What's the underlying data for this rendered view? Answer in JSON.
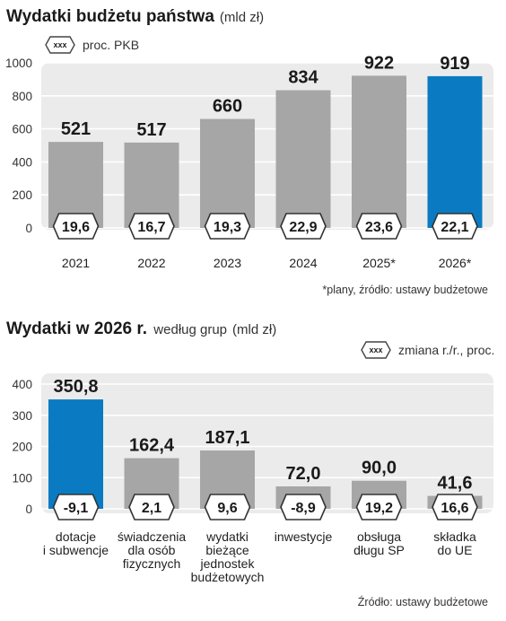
{
  "chart1": {
    "title": "Wydatki budżetu państwa",
    "unit": "(mld zł)",
    "legend_badge": "xxx",
    "legend_label": "proc. PKB",
    "source": "*plany, źródło: ustawy budżetowe"
  },
  "chart2": {
    "title": "Wydatki w 2026 r.",
    "title_suffix": "według grup",
    "unit": "(mld zł)",
    "legend_badge": "xxx",
    "legend_label": "zmiana r./r., proc.",
    "source": "Źródło: ustawy budżetowe"
  },
  "colors": {
    "gray_bar": "#a6a6a6",
    "highlight_bar": "#0a7bc2",
    "panel_bg": "#ebebeb"
  },
  "chart_data": [
    {
      "type": "bar",
      "title": "Wydatki budżetu państwa",
      "ylabel": "",
      "xlabel": "",
      "ylim": [
        0,
        1000
      ],
      "yticks": [
        0,
        200,
        400,
        600,
        800,
        1000
      ],
      "categories": [
        "2021",
        "2022",
        "2023",
        "2024",
        "2025*",
        "2026*"
      ],
      "values": [
        521,
        517,
        660,
        834,
        922,
        919
      ],
      "value_labels": [
        "521",
        "517",
        "660",
        "834",
        "922",
        "919"
      ],
      "badges": [
        "19,6",
        "16,7",
        "19,3",
        "22,9",
        "23,6",
        "22,1"
      ],
      "highlight_index": 5,
      "grid": true
    },
    {
      "type": "bar",
      "title": "Wydatki w 2026 r. według grup",
      "ylabel": "",
      "xlabel": "",
      "ylim": [
        0,
        400
      ],
      "yticks": [
        0,
        100,
        200,
        300,
        400
      ],
      "categories": [
        [
          "dotacje",
          "i subwencje"
        ],
        [
          "świadczenia",
          "dla osób",
          "fizycznych"
        ],
        [
          "wydatki",
          "bieżące",
          "jednostek",
          "budżetowych"
        ],
        [
          "inwestycje"
        ],
        [
          "obsługa",
          "długu SP"
        ],
        [
          "składka",
          "do UE"
        ]
      ],
      "values": [
        350.8,
        162.4,
        187.1,
        72.0,
        90.0,
        41.6
      ],
      "value_labels": [
        "350,8",
        "162,4",
        "187,1",
        "72,0",
        "90,0",
        "41,6"
      ],
      "badges": [
        "-9,1",
        "2,1",
        "9,6",
        "-8,9",
        "19,2",
        "16,6"
      ],
      "highlight_index": 0,
      "grid": true
    }
  ]
}
